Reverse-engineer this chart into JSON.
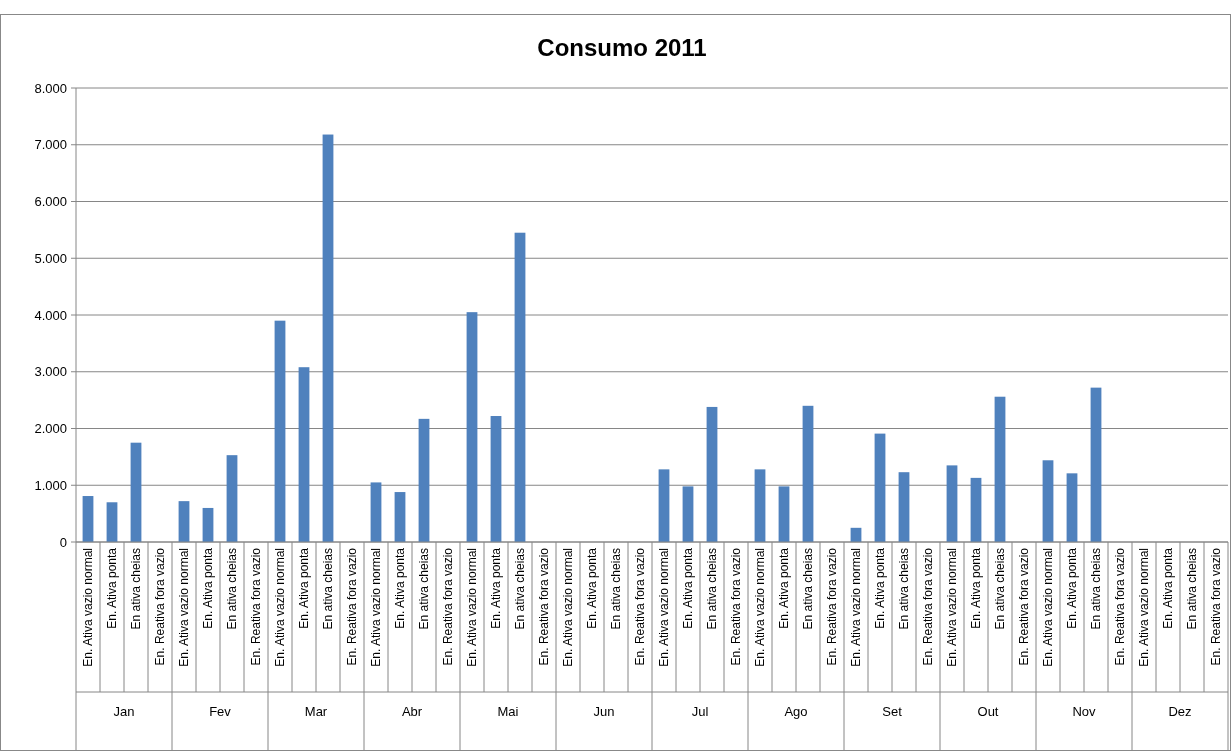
{
  "chart_data": {
    "type": "bar",
    "title": "Consumo 2011",
    "categories": [
      "En. Ativa vazio normal",
      "En. Ativa ponta",
      "En ativa cheias",
      "En. Reativa fora vazio",
      "En. Ativa vazio normal",
      "En. Ativa ponta",
      "En ativa cheias",
      "En. Reativa fora vazio",
      "En. Ativa vazio normal",
      "En. Ativa ponta",
      "En ativa cheias",
      "En. Reativa fora vazio",
      "En. Ativa vazio normal",
      "En. Ativa ponta",
      "En ativa cheias",
      "En. Reativa fora vazio",
      "En. Ativa vazio normal",
      "En. Ativa ponta",
      "En ativa cheias",
      "En. Reativa fora vazio",
      "En. Ativa vazio normal",
      "En. Ativa ponta",
      "En ativa cheias",
      "En. Reativa fora vazio",
      "En. Ativa vazio normal",
      "En. Ativa ponta",
      "En ativa cheias",
      "En. Reativa fora vazio",
      "En. Ativa vazio normal",
      "En. Ativa ponta",
      "En ativa cheias",
      "En. Reativa fora vazio",
      "En. Ativa vazio normal",
      "En. Ativa ponta",
      "En ativa cheias",
      "En. Reativa fora vazio",
      "En. Ativa vazio normal",
      "En. Ativa ponta",
      "En ativa cheias",
      "En. Reativa fora vazio",
      "En. Ativa vazio normal",
      "En. Ativa ponta",
      "En ativa cheias",
      "En. Reativa fora vazio",
      "En. Ativa vazio normal",
      "En. Ativa ponta",
      "En ativa cheias",
      "En. Reativa fora vazio"
    ],
    "annotations": [
      "Jan",
      "Fev",
      "Mar",
      "Abr",
      "Mai",
      "Jun",
      "Jul",
      "Ago",
      "Set",
      "Out",
      "Nov",
      "Dez"
    ],
    "values": [
      810,
      700,
      1750,
      0,
      720,
      600,
      1530,
      0,
      3900,
      3080,
      7180,
      0,
      1050,
      880,
      2170,
      0,
      4050,
      2220,
      5450,
      0,
      0,
      0,
      0,
      0,
      1280,
      980,
      2380,
      0,
      1280,
      980,
      2400,
      0,
      250,
      1910,
      1230,
      0,
      1350,
      1130,
      2560,
      0,
      1440,
      1210,
      2720,
      0,
      0,
      0,
      0,
      0
    ],
    "color": "#4f81bd",
    "ylim": [
      0,
      8000
    ],
    "yticks": [
      0,
      {
        "value": 1000,
        "label": "1.000"
      },
      {
        "value": 2000,
        "label": "2.000"
      },
      {
        "value": 3000,
        "label": "3.000"
      },
      {
        "value": 4000,
        "label": "4.000"
      },
      {
        "value": 5000,
        "label": "5.000"
      },
      {
        "value": 6000,
        "label": "6.000"
      },
      {
        "value": 7000,
        "label": "7.000"
      },
      {
        "value": 8000,
        "label": "8.000"
      }
    ],
    "grid": "y"
  }
}
